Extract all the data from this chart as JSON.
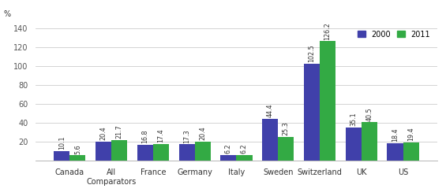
{
  "categories": [
    "Canada",
    "All\nComparators",
    "France",
    "Germany",
    "Italy",
    "Sweden",
    "Switzerland",
    "UK",
    "US"
  ],
  "values_2000": [
    10.1,
    20.4,
    16.8,
    17.3,
    6.2,
    44.4,
    102.5,
    35.1,
    18.4
  ],
  "values_2011": [
    5.6,
    21.7,
    17.4,
    20.4,
    6.2,
    25.3,
    126.2,
    40.5,
    19.4
  ],
  "color_2000": "#4040aa",
  "color_2011": "#33aa44",
  "ylim": [
    0,
    145
  ],
  "yticks": [
    0,
    20,
    40,
    60,
    80,
    100,
    120,
    140
  ],
  "legend_labels": [
    "2000",
    "2011"
  ],
  "bar_width": 0.38,
  "value_fontsize": 5.8,
  "label_fontsize": 7.0,
  "percent_label": "%"
}
